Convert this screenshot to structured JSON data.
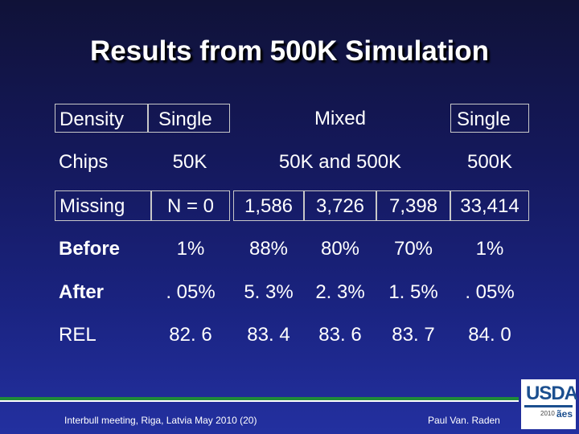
{
  "slide": {
    "title": "Results from 500K Simulation",
    "rows": {
      "density": {
        "label": "Density",
        "single1": "Single",
        "mixed": "Mixed",
        "single2": "Single"
      },
      "chips": {
        "label": "Chips",
        "c1": "50K",
        "c2": "50K and 500K",
        "c3": "500K"
      },
      "missing": {
        "label": "Missing",
        "values": [
          "N = 0",
          "1,586",
          "3,726",
          "7,398",
          "33,414"
        ]
      },
      "before": {
        "label": "Before",
        "values": [
          "1%",
          "88%",
          "80%",
          "70%",
          "1%"
        ]
      },
      "after": {
        "label": "After",
        "values": [
          ". 05%",
          "5. 3%",
          "2. 3%",
          "1. 5%",
          ". 05%"
        ]
      },
      "rel": {
        "label": "REL",
        "values": [
          "82. 6",
          "83. 4",
          "83. 6",
          "83. 7",
          "84. 0"
        ]
      }
    }
  },
  "footer": {
    "event": "Interbull meeting, Riga, Latvia   May 2010 (20)",
    "author": "Paul Van. Raden"
  },
  "logo": {
    "text": "USDA",
    "year": "2010",
    "aes": "ães"
  }
}
